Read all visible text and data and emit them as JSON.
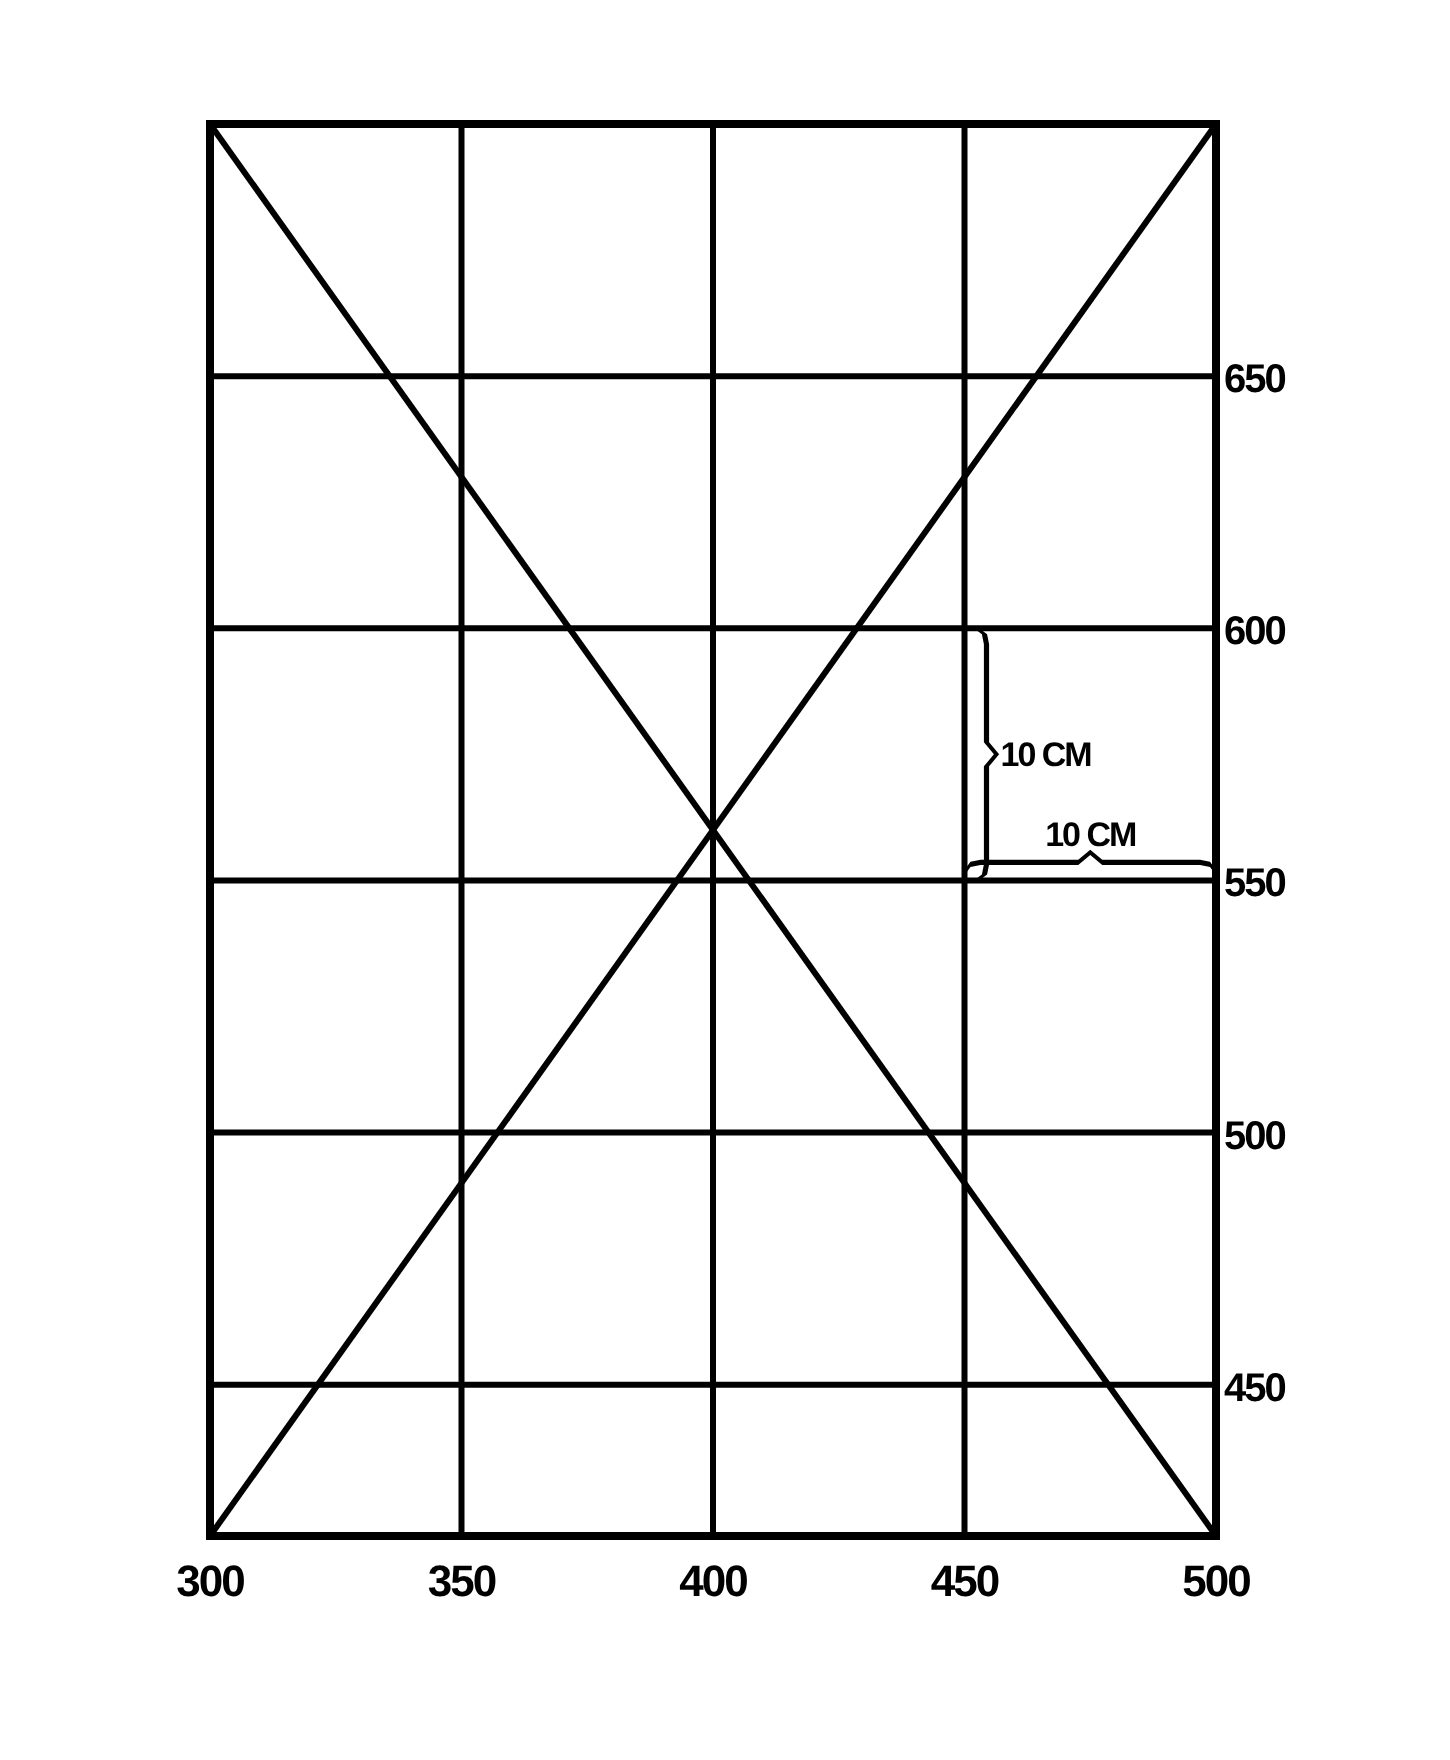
{
  "chart_data": {
    "type": "line",
    "xlim": [
      300,
      500
    ],
    "xticks": [
      300,
      350,
      400,
      450,
      500
    ],
    "ylim": [
      420,
      700
    ],
    "yticks": [
      450,
      500,
      550,
      600,
      650
    ],
    "grid": true,
    "line_style": "solid",
    "x": [
      300,
      500
    ],
    "series": [
      {
        "color": "#000000",
        "values": [
          420,
          700
        ]
      },
      {
        "color": "#000000",
        "values": [
          700,
          420
        ]
      }
    ],
    "annotations": [
      "10 CM",
      "10 CM"
    ]
  }
}
